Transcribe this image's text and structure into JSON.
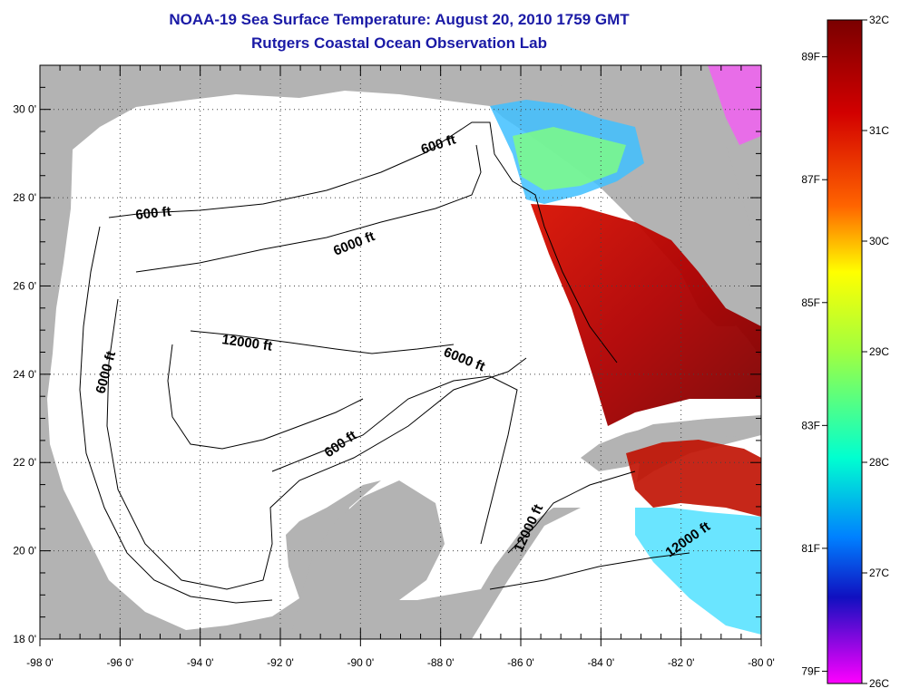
{
  "title": "NOAA-19 Sea Surface Temperature:  August 20, 2010 1759 GMT",
  "subtitle": "Rutgers Coastal Ocean Observation Lab",
  "map": {
    "lon_labels": [
      "-98 0'",
      "-96 0'",
      "-94 0'",
      "-92 0'",
      "-90 0'",
      "-88 0'",
      "-86 0'",
      "-84 0'",
      "-82 0'",
      "-80 0'"
    ],
    "lat_labels": [
      "30 0'",
      "28 0'",
      "26 0'",
      "24 0'",
      "22 0'",
      "20 0'",
      "18 0'"
    ],
    "lon_range": [
      -98,
      -80
    ],
    "lat_range": [
      18,
      31
    ],
    "contour_labels": [
      "600 ft",
      "600 ft",
      "6000 ft",
      "6000 ft",
      "6000 ft",
      "12000 ft",
      "600 ft",
      "12000 ft",
      "12000 ft"
    ],
    "colors": {
      "land": "#b3b3b3",
      "ocean": "#ffffff",
      "title": "#1a1aa6"
    }
  },
  "colorbar": {
    "celsius_labels": [
      "32C",
      "31C",
      "30C",
      "29C",
      "28C",
      "27C",
      "26C"
    ],
    "fahrenheit_labels": [
      "89F",
      "87F",
      "85F",
      "83F",
      "81F",
      "79F"
    ],
    "stops": [
      "#7a0000",
      "#d20000",
      "#ff6400",
      "#ffff00",
      "#a0ff40",
      "#00ffd0",
      "#0080ff",
      "#1010c0",
      "#ff00ff"
    ]
  }
}
